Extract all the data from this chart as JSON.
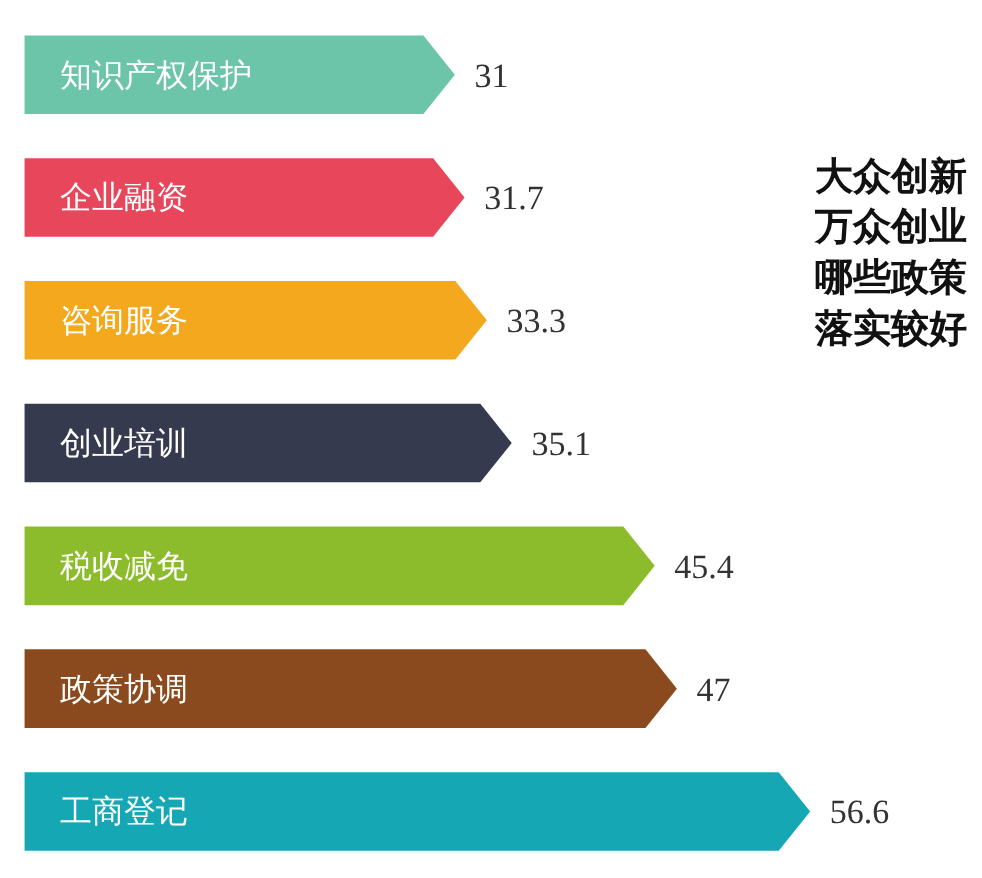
{
  "chart_data": {
    "type": "bar",
    "orientation": "horizontal",
    "title": "大众创新万众创业哪些政策落实较好",
    "categories": [
      "知识产权保护",
      "企业融资",
      "咨询服务",
      "创业培训",
      "税收减免",
      "政策协调",
      "工商登记"
    ],
    "values": [
      31,
      31.7,
      33.3,
      35.1,
      45.4,
      47,
      56.6
    ],
    "colors": [
      "#6cc5a8",
      "#e8465a",
      "#f3a81e",
      "#363a4f",
      "#8cbb2c",
      "#8b4a1e",
      "#16a7b5"
    ],
    "data_labels": true,
    "grid": false
  }
}
